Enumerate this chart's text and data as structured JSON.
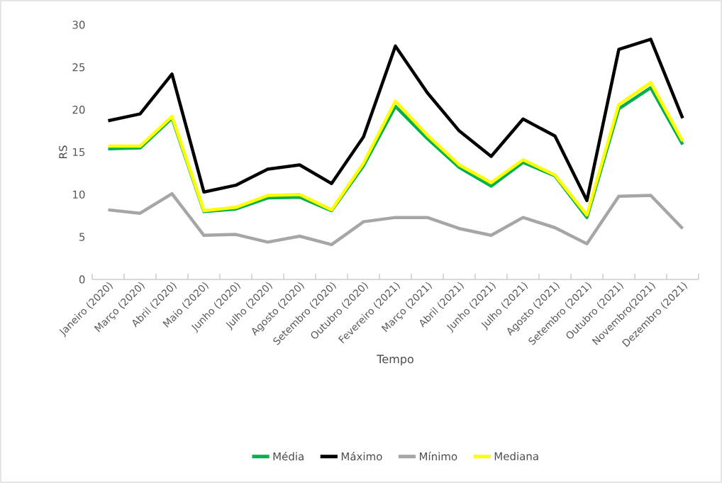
{
  "chart_data": {
    "type": "line",
    "xlabel": "Tempo",
    "ylabel": "RS",
    "ylim": [
      0,
      30
    ],
    "yticks": [
      0,
      5,
      10,
      15,
      20,
      25,
      30
    ],
    "grid": false,
    "legend": "bottom",
    "marker": "none",
    "line_style": "solid",
    "categories": [
      "Janeiro (2020)",
      "Março (2020)",
      "Abril (2020)",
      "Maio (2020)",
      "Junho (2020)",
      "Julho (2020)",
      "Agosto (2020)",
      "Setembro (2020)",
      "Outubro (2020)",
      "Fevereiro (2021)",
      "Março (2021)",
      "Abril (2021)",
      "Junho (2021)",
      "Julho (2021)",
      "Agosto (2021)",
      "Setembro (2021)",
      "Outubro (2021)",
      "Novembro(2021)",
      "Dezembro (2021)"
    ],
    "series": [
      {
        "name": "Média",
        "color": "#00b050",
        "values": [
          15.4,
          15.5,
          19.0,
          8.0,
          8.3,
          9.6,
          9.7,
          8.1,
          13.4,
          20.4,
          16.6,
          13.2,
          11.0,
          13.8,
          12.2,
          7.3,
          20.1,
          22.6,
          15.9
        ]
      },
      {
        "name": "Máximo",
        "color": "#000000",
        "values": [
          18.7,
          19.5,
          24.2,
          10.3,
          11.1,
          13.0,
          13.5,
          11.3,
          16.8,
          27.5,
          22.0,
          17.5,
          14.5,
          18.9,
          16.9,
          9.3,
          27.1,
          28.3,
          19.0
        ]
      },
      {
        "name": "Mínimo",
        "color": "#a6a6a6",
        "values": [
          8.2,
          7.8,
          10.1,
          5.2,
          5.3,
          4.4,
          5.1,
          4.1,
          6.8,
          7.3,
          7.3,
          6.0,
          5.2,
          7.3,
          6.1,
          4.2,
          9.8,
          9.9,
          6.0
        ]
      },
      {
        "name": "Mediana",
        "color": "#ffff00",
        "values": [
          15.7,
          15.7,
          19.2,
          8.1,
          8.5,
          9.9,
          10.0,
          8.2,
          13.7,
          21.0,
          17.0,
          13.5,
          11.4,
          14.1,
          12.3,
          7.6,
          20.6,
          23.2,
          16.3
        ]
      }
    ]
  }
}
